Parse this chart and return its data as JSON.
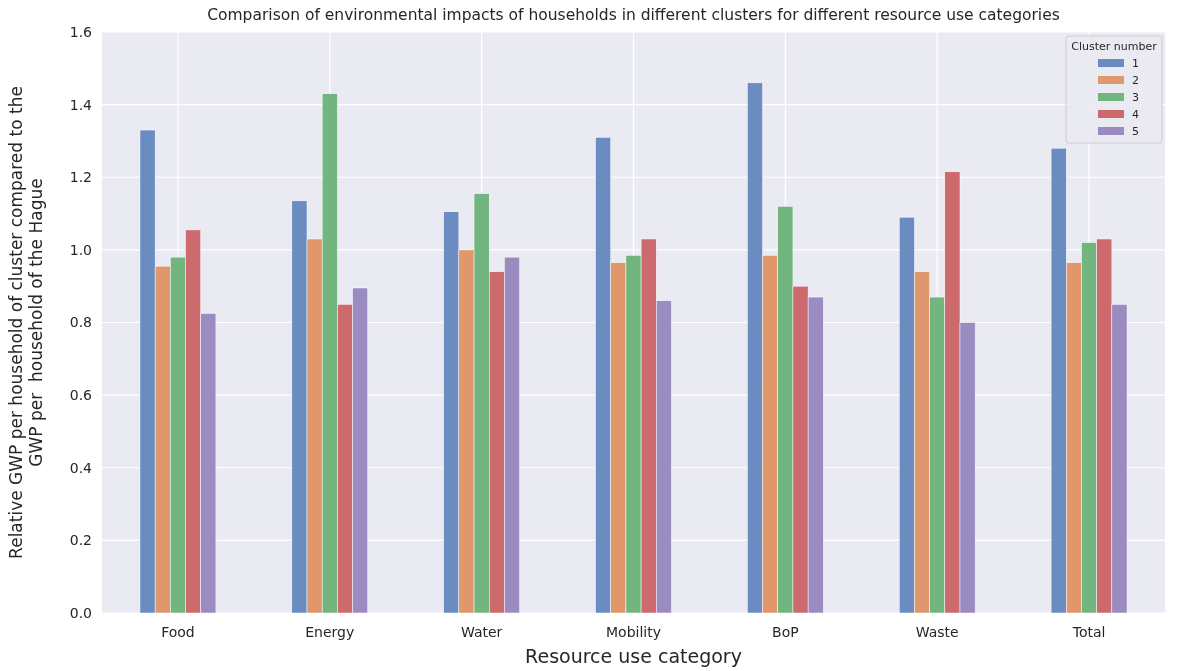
{
  "chart_data": {
    "type": "bar",
    "title": "Comparison of environmental impacts of households in different clusters for different resource use categories",
    "xlabel": "Resource use category",
    "ylabel": "Relative GWP per household of cluster compared to the\nGWP per  household of the Hague",
    "legend_title": "Cluster number",
    "categories": [
      "Food",
      "Energy",
      "Water",
      "Mobility",
      "BoP",
      "Waste",
      "Total"
    ],
    "series": [
      {
        "name": "1",
        "color": "#6a8cc0",
        "values": [
          1.33,
          1.135,
          1.105,
          1.31,
          1.46,
          1.09,
          1.28
        ]
      },
      {
        "name": "2",
        "color": "#e0976c",
        "values": [
          0.955,
          1.03,
          1.0,
          0.965,
          0.985,
          0.94,
          0.965
        ]
      },
      {
        "name": "3",
        "color": "#73b57f",
        "values": [
          0.98,
          1.43,
          1.155,
          0.985,
          1.12,
          0.87,
          1.02
        ]
      },
      {
        "name": "4",
        "color": "#cd6a6e",
        "values": [
          1.055,
          0.85,
          0.94,
          1.03,
          0.9,
          1.215,
          1.03
        ]
      },
      {
        "name": "5",
        "color": "#9a8bc1",
        "values": [
          0.825,
          0.895,
          0.98,
          0.86,
          0.87,
          0.8,
          0.85
        ]
      }
    ],
    "ylim": [
      0,
      1.6
    ],
    "yticks": [
      {
        "value": 0,
        "label": "0.0"
      },
      {
        "value": 0.2,
        "label": "0.2"
      },
      {
        "value": 0.4,
        "label": "0.4"
      },
      {
        "value": 0.6,
        "label": "0.6"
      },
      {
        "value": 0.8,
        "label": "0.8"
      },
      {
        "value": 1.0,
        "label": "1.0"
      },
      {
        "value": 1.2,
        "label": "1.2"
      },
      {
        "value": 1.4,
        "label": "1.4"
      },
      {
        "value": 1.6,
        "label": "1.6"
      }
    ],
    "grid": true,
    "legend": "top right"
  }
}
